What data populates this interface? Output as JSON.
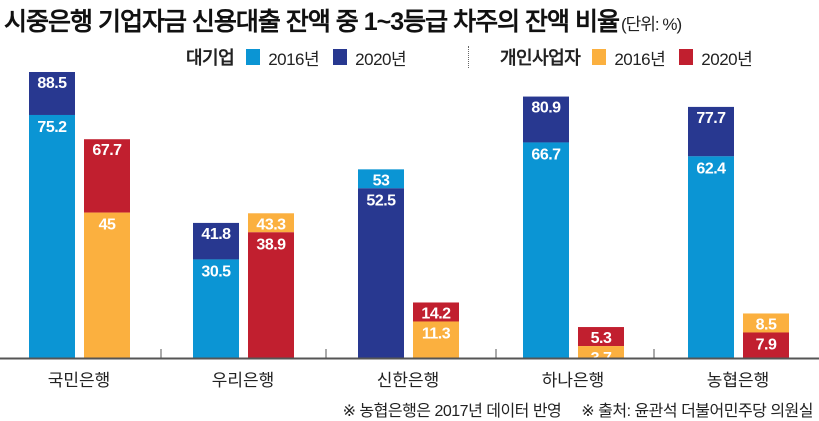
{
  "chart_data": {
    "type": "bar",
    "title": "시중은행 기업자금 신용대출 잔액 중 1~3등급 차주의 잔액 비율",
    "unit": "(단위: %)",
    "categories": [
      "국민은행",
      "우리은행",
      "신한은행",
      "하나은행",
      "농협은행"
    ],
    "groups": [
      {
        "name": "대기업",
        "series": [
          {
            "name": "2016년",
            "color": "#0b95d4",
            "values": [
              75.2,
              30.5,
              53,
              66.7,
              62.4
            ]
          },
          {
            "name": "2020년",
            "color": "#283890",
            "values": [
              88.5,
              41.8,
              52.5,
              80.9,
              77.7
            ]
          }
        ]
      },
      {
        "name": "개인사업자",
        "series": [
          {
            "name": "2016년",
            "color": "#fbb03f",
            "values": [
              45.0,
              43.3,
              11.3,
              3.7,
              8.5
            ]
          },
          {
            "name": "2020년",
            "color": "#c11f2f",
            "values": [
              67.7,
              38.9,
              14.2,
              5.3,
              7.9
            ]
          }
        ]
      }
    ],
    "ylim": [
      0,
      90
    ],
    "grid": false,
    "legend": "top-right",
    "footnotes": [
      "※ 농협은행은 2017년 데이터 반영",
      "※ 출처: 윤관석 더불어민주당 의원실"
    ]
  }
}
